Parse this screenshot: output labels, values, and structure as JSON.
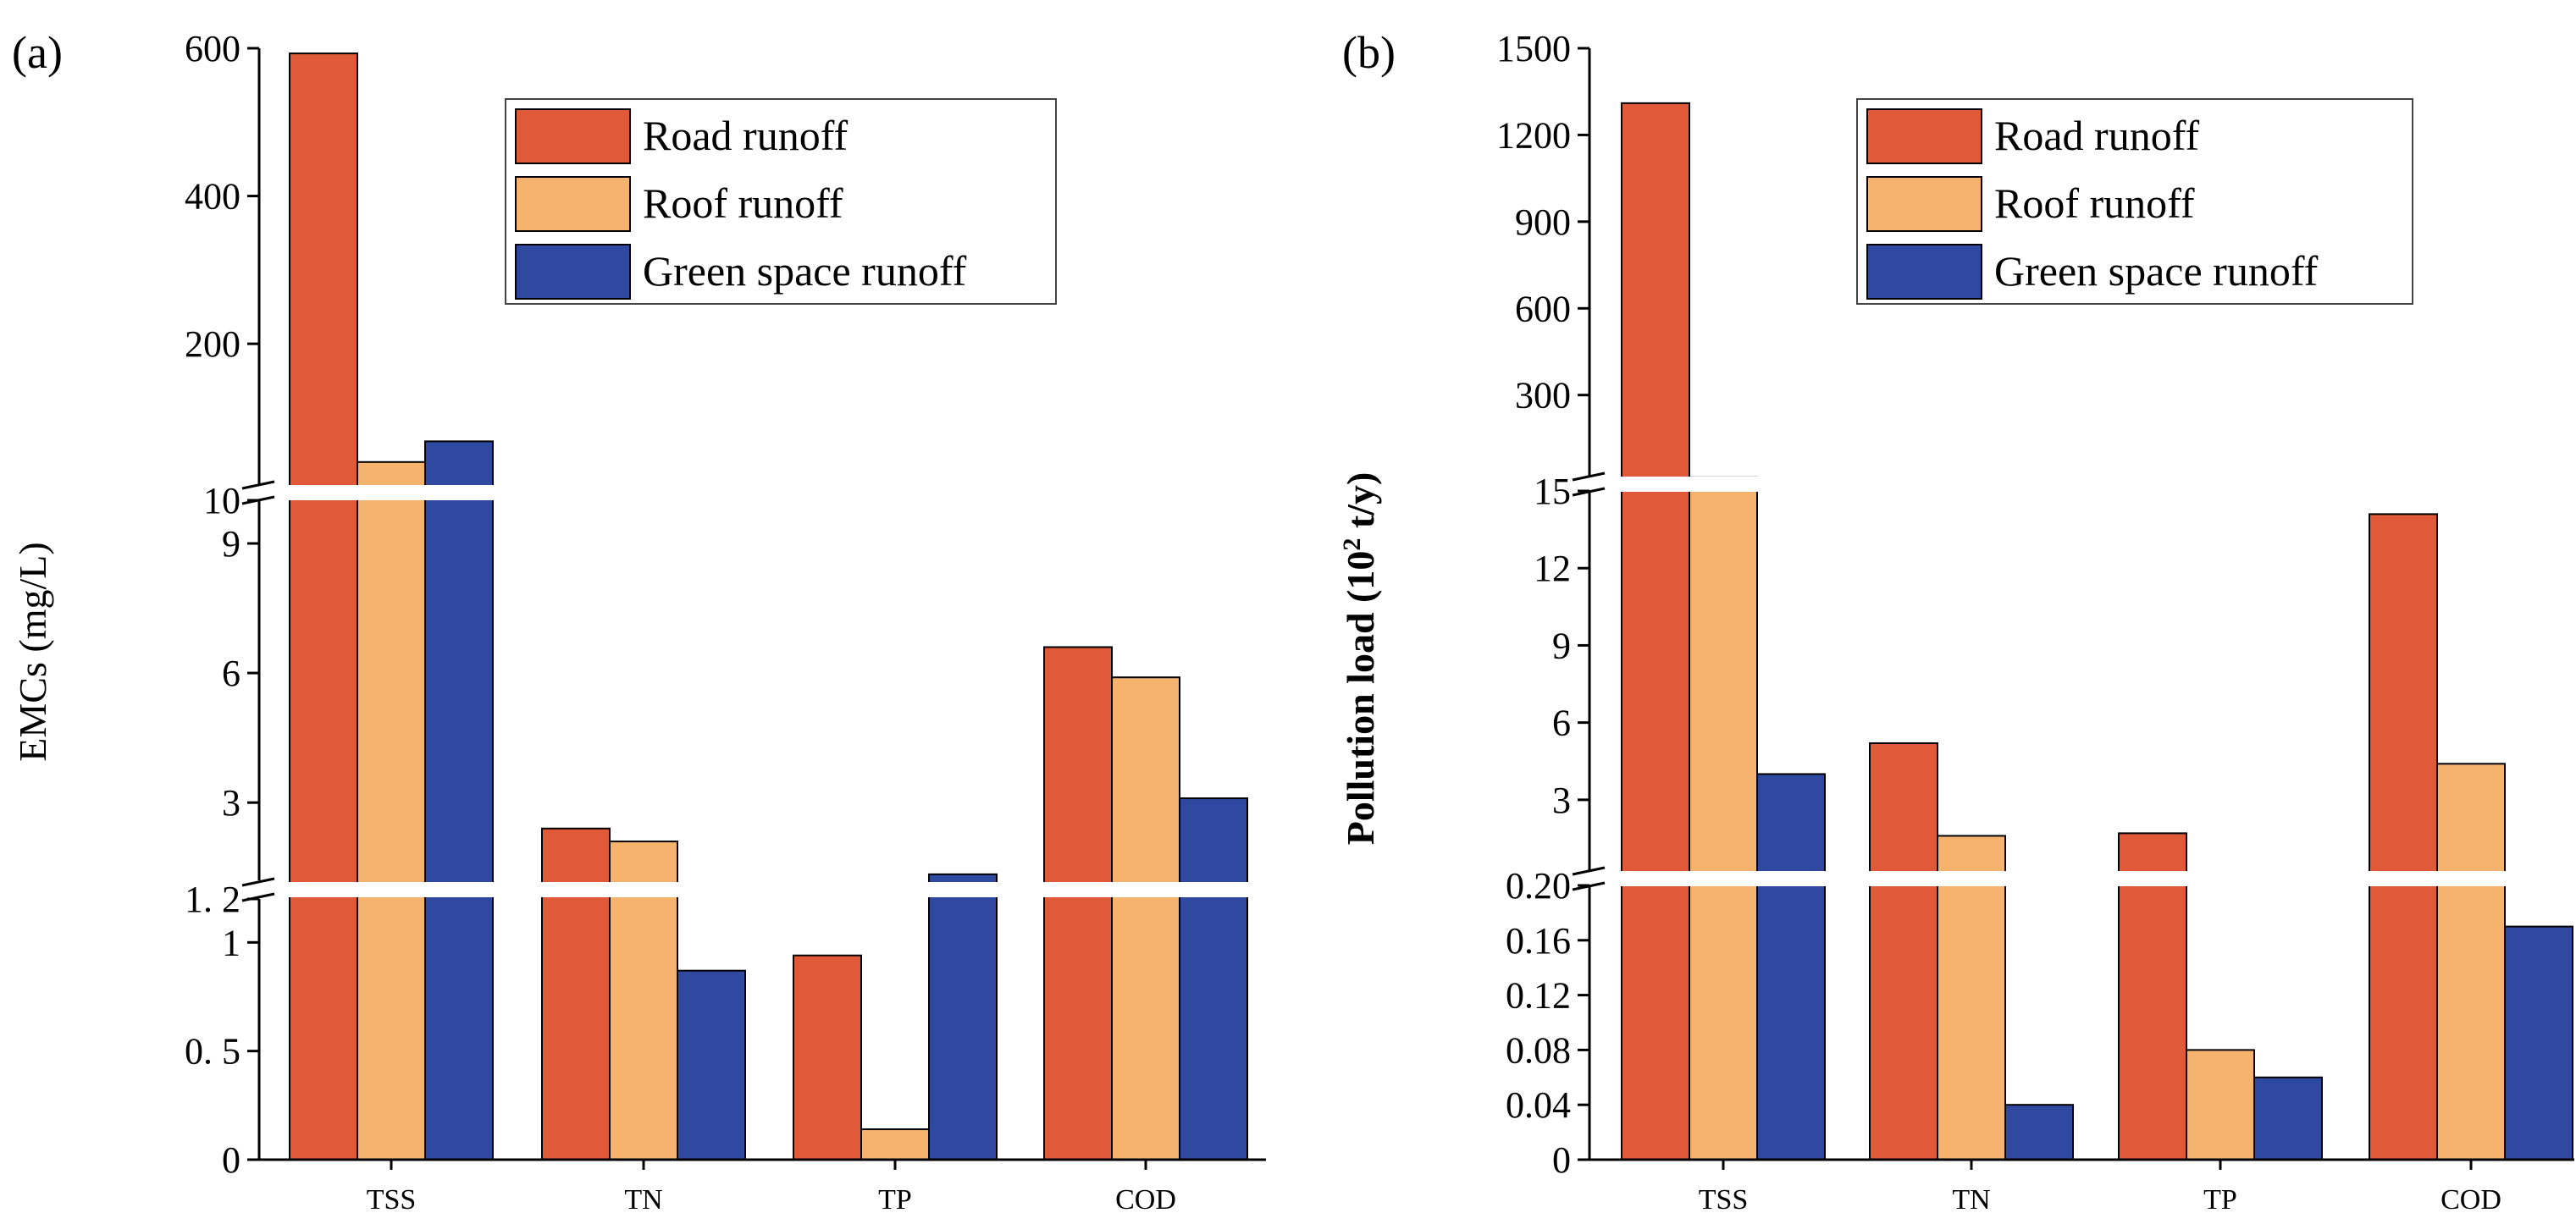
{
  "colors": {
    "road": "#E05A3A",
    "roof": "#F5B36E",
    "green": "#2F49A0",
    "axis": "#000000",
    "background": "#FFFFFF"
  },
  "chart_data": [
    {
      "type": "bar",
      "panel_label": "(a)",
      "ylabel": "EMCs (mg/L)",
      "categories": [
        "TSS",
        "TN",
        "TP",
        "COD"
      ],
      "series": [
        {
          "name": "Road runoff",
          "color_key": "road",
          "values": [
            593,
            2.4,
            0.94,
            6.6
          ]
        },
        {
          "name": "Roof runoff",
          "color_key": "roof",
          "values": [
            40,
            2.1,
            0.14,
            5.9
          ]
        },
        {
          "name": "Green space runoff",
          "color_key": "green",
          "values": [
            68,
            0.87,
            1.34,
            3.1
          ]
        }
      ],
      "axis_break": {
        "segments": [
          {
            "range": [
              0,
              1.2
            ],
            "ticks": [
              0,
              0.5,
              1,
              1.2
            ],
            "tick_labels": [
              "0",
              "0. 5",
              "1",
              "1. 2"
            ]
          },
          {
            "range": [
              1.2,
              10
            ],
            "ticks": [
              3,
              6,
              9,
              10
            ],
            "tick_labels": [
              "3",
              "6",
              "9",
              "10"
            ]
          },
          {
            "range": [
              10,
              600
            ],
            "ticks": [
              200,
              400,
              600
            ],
            "tick_labels": [
              "200",
              "400",
              "600"
            ]
          }
        ]
      },
      "legend": {
        "position": "top-right",
        "entries": [
          "Road runoff",
          "Roof runoff",
          "Green space runoff"
        ]
      }
    },
    {
      "type": "bar",
      "panel_label": "(b)",
      "ylabel": "Pollution load (10² t/y)",
      "categories": [
        "TSS",
        "TN",
        "TP",
        "COD"
      ],
      "series": [
        {
          "name": "Road runoff",
          "color_key": "road",
          "values": [
            1310,
            5.2,
            1.7,
            14.1
          ]
        },
        {
          "name": "Roof runoff",
          "color_key": "roof",
          "values": [
            15.5,
            1.6,
            0.08,
            4.4
          ]
        },
        {
          "name": "Green space runoff",
          "color_key": "green",
          "values": [
            4.0,
            0.04,
            0.06,
            0.17
          ]
        }
      ],
      "axis_break": {
        "segments": [
          {
            "range": [
              0,
              0.2
            ],
            "ticks": [
              0,
              0.04,
              0.08,
              0.12,
              0.16,
              0.2
            ],
            "tick_labels": [
              "0",
              "0.04",
              "0.08",
              "0.12",
              "0.16",
              "0.20"
            ]
          },
          {
            "range": [
              0.2,
              15
            ],
            "ticks": [
              3,
              6,
              9,
              12,
              15
            ],
            "tick_labels": [
              "3",
              "6",
              "9",
              "12",
              "15"
            ]
          },
          {
            "range": [
              15,
              1500
            ],
            "ticks": [
              300,
              600,
              900,
              1200,
              1500
            ],
            "tick_labels": [
              "300",
              "600",
              "900",
              "1200",
              "1500"
            ]
          }
        ]
      },
      "legend": {
        "position": "top-right",
        "entries": [
          "Road runoff",
          "Roof runoff",
          "Green space runoff"
        ]
      }
    }
  ]
}
